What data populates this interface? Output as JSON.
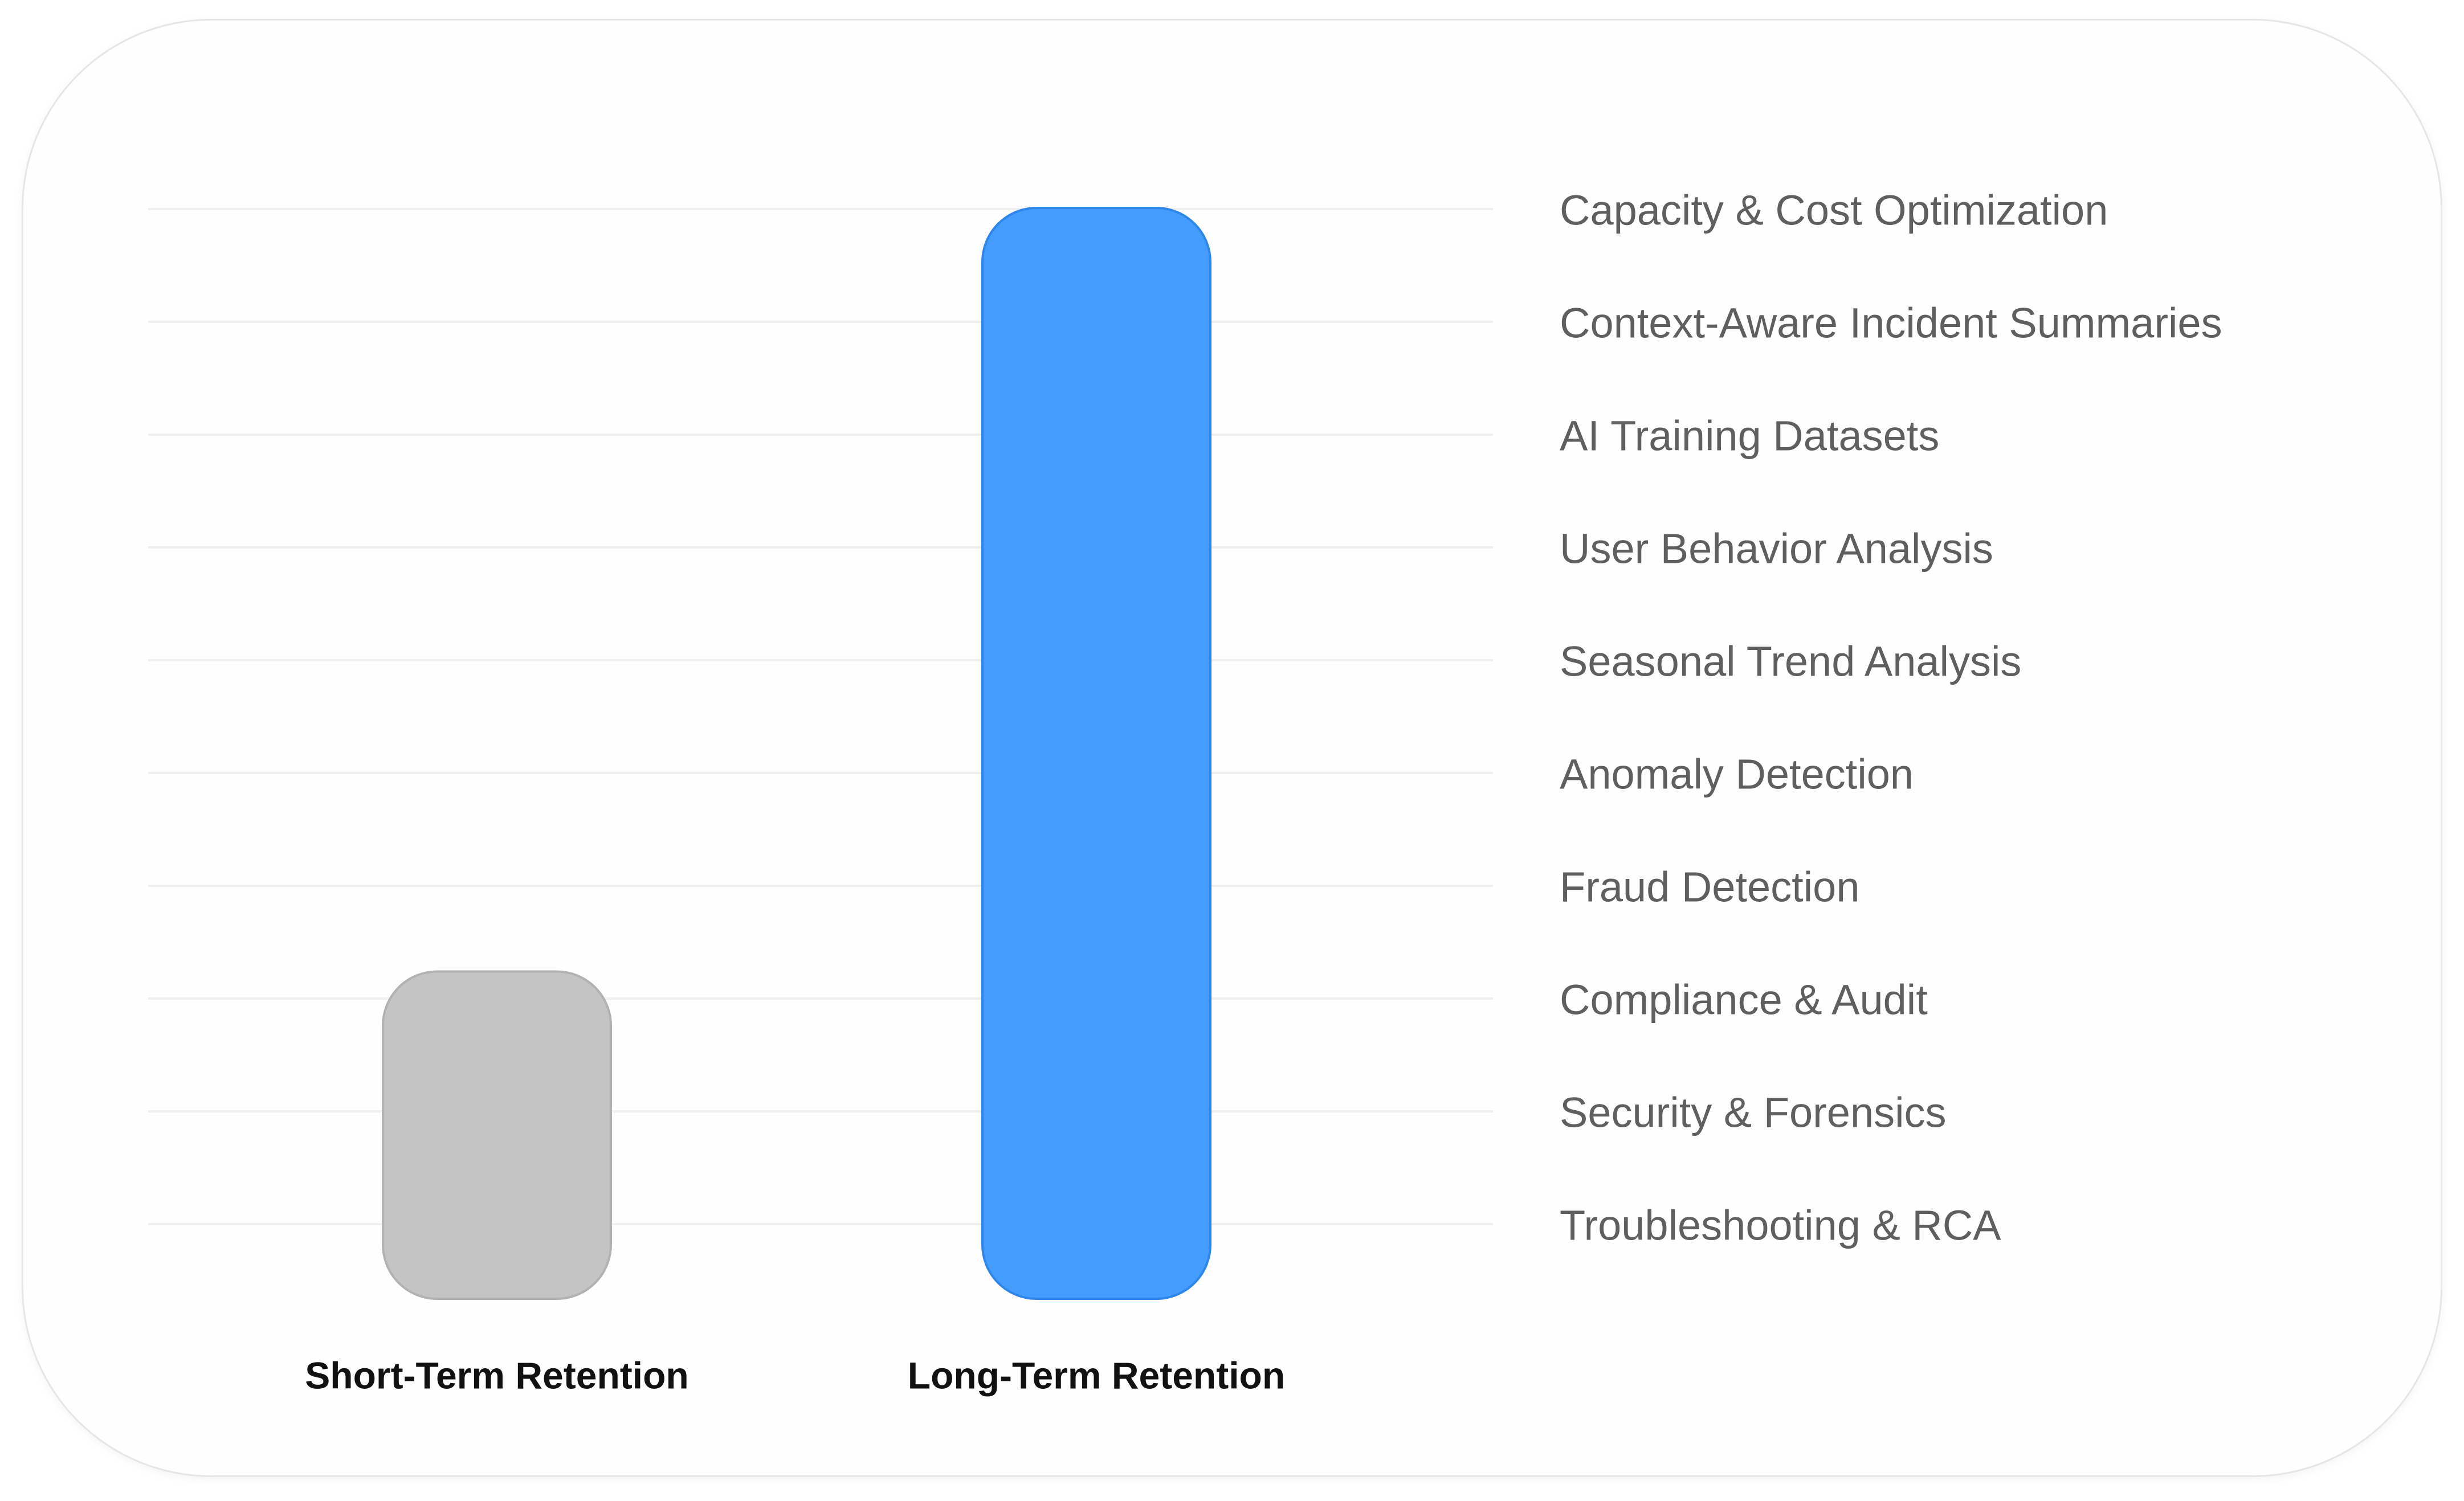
{
  "chart_data": {
    "type": "bar",
    "categories": [
      "Short-Term Retention",
      "Long-Term Retention"
    ],
    "values": [
      3,
      10
    ],
    "ylim": [
      0,
      10
    ],
    "grid": true,
    "colors": [
      "#c4c4c4",
      "#459cff"
    ],
    "label_list": [
      "Capacity & Cost Optimization",
      "Context-Aware Incident Summaries",
      "AI Training Datasets",
      "User Behavior Analysis",
      "Seasonal Trend Analysis",
      "Anomaly Detection",
      "Fraud Detection",
      "Compliance & Audit",
      "Security & Forensics",
      "Troubleshooting & RCA"
    ]
  }
}
